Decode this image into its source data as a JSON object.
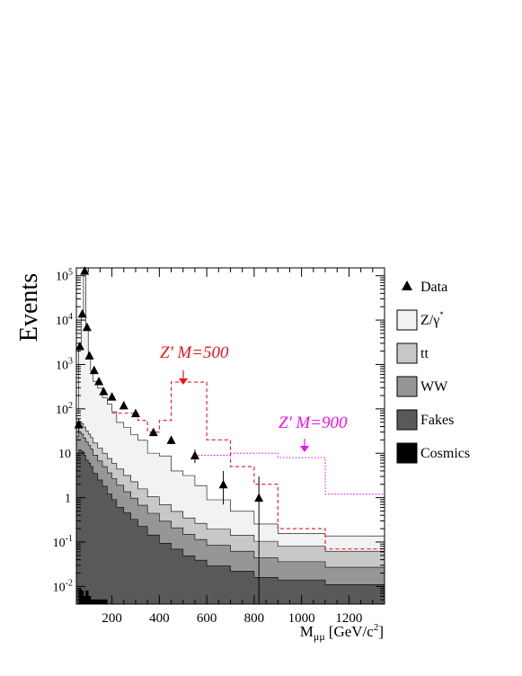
{
  "chart_data": {
    "type": "area",
    "title": "",
    "ylabel": "Events",
    "xlabel": {
      "base": "M",
      "sub": "μμ",
      "units_pre": "[GeV/c",
      "units_sup": "2",
      "units_post": "]"
    },
    "xlim": [
      50,
      1350
    ],
    "ylim": [
      0.004,
      150000
    ],
    "yscale": "log",
    "grid": false,
    "legend_position": "right",
    "x_ticks": [
      200,
      400,
      600,
      800,
      1000,
      1200
    ],
    "y_ticks": [
      {
        "value": 0.01,
        "base": "10",
        "exp": "-2"
      },
      {
        "value": 0.1,
        "base": "10",
        "exp": "-1"
      },
      {
        "value": 1,
        "base": "1",
        "exp": ""
      },
      {
        "value": 10,
        "base": "10",
        "exp": ""
      },
      {
        "value": 100,
        "base": "10",
        "exp": "2"
      },
      {
        "value": 1000,
        "base": "10",
        "exp": "3"
      },
      {
        "value": 10000,
        "base": "10",
        "exp": "4"
      },
      {
        "value": 100000,
        "base": "10",
        "exp": "5"
      }
    ],
    "bin_edges": [
      50,
      60,
      70,
      80,
      90,
      100,
      110,
      120,
      140,
      160,
      180,
      200,
      220,
      250,
      280,
      310,
      350,
      400,
      450,
      500,
      550,
      600,
      700,
      800,
      900,
      1100,
      1350
    ],
    "stack": [
      {
        "name": "Cosmics",
        "color": "#000000",
        "values": [
          0.004,
          0.009,
          0.008,
          0.006,
          0.008,
          0.006,
          0.005,
          0.005,
          0.005,
          0.005,
          0.004,
          0.004,
          0.004,
          0.004,
          0.004,
          0.004,
          0.004,
          0.004,
          0.004,
          0.004,
          0.004,
          0.004,
          0.004,
          0.004,
          0.004,
          0.004
        ]
      },
      {
        "name": "Fakes",
        "color": "#595959",
        "values": [
          10,
          12,
          11,
          9,
          7,
          6,
          5,
          3.5,
          2.5,
          1.8,
          1.2,
          0.9,
          0.6,
          0.45,
          0.32,
          0.22,
          0.14,
          0.09,
          0.065,
          0.045,
          0.035,
          0.025,
          0.018,
          0.012,
          0.01,
          0.007
        ]
      },
      {
        "name": "WW",
        "color": "#969696",
        "values": [
          14,
          18,
          16,
          13,
          11,
          9,
          7.5,
          5.5,
          4.2,
          3.2,
          2.4,
          1.8,
          1.3,
          0.9,
          0.65,
          0.45,
          0.3,
          0.2,
          0.14,
          0.1,
          0.075,
          0.055,
          0.04,
          0.028,
          0.022,
          0.016
        ]
      },
      {
        "name": "tt",
        "color": "#c8c8c8",
        "values": [
          16,
          22,
          20,
          17,
          14,
          12,
          10,
          8,
          6.5,
          5,
          4,
          3.2,
          2.5,
          1.8,
          1.3,
          0.9,
          0.6,
          0.4,
          0.28,
          0.2,
          0.15,
          0.11,
          0.08,
          0.06,
          0.045,
          0.035
        ]
      },
      {
        "name": "Z/γ*",
        "color": "#f2f2f2",
        "values": [
          40,
          2200,
          12000,
          100000,
          6500,
          1600,
          700,
          400,
          280,
          170,
          120,
          80,
          45,
          35,
          24,
          18,
          9,
          8,
          3.5,
          2.8,
          1.6,
          0.7,
          0.35,
          0.15,
          0.075,
          0.075
        ]
      }
    ],
    "signals": [
      {
        "name": "Z' M=500",
        "label": "Z' M=500",
        "color": "#e8141e",
        "dash": "4,3",
        "edges": [
          200,
          310,
          350,
          400,
          450,
          500,
          550,
          600,
          700,
          800,
          900,
          1100,
          1350
        ],
        "values": [
          80,
          55,
          30,
          55,
          400,
          400,
          400,
          20,
          5,
          2,
          0.2,
          0.07
        ],
        "label_pos": [
          178,
          398
        ],
        "arrow_x": 204,
        "arrow_y1": 412,
        "arrow_y2": 428
      },
      {
        "name": "Z' M=900",
        "label": "Z' M=900",
        "color": "#ee11ee",
        "dash": "1.5,2",
        "edges": [
          550,
          600,
          700,
          800,
          900,
          1000,
          1100,
          1350
        ],
        "values": [
          9,
          9,
          10,
          10,
          8,
          8,
          1.2
        ],
        "label_pos": [
          310,
          476
        ],
        "arrow_x": 339,
        "arrow_y1": 488,
        "arrow_y2": 503
      }
    ],
    "data_points": [
      {
        "x": 60,
        "y": 45,
        "err": [
          30,
          60
        ]
      },
      {
        "x": 65,
        "y": 2600,
        "err": [
          2500,
          2700
        ]
      },
      {
        "x": 75,
        "y": 14000,
        "err": [
          13800,
          14200
        ]
      },
      {
        "x": 85,
        "y": 130000,
        "err": [
          129000,
          131000
        ]
      },
      {
        "x": 95,
        "y": 7000,
        "err": [
          6900,
          7100
        ]
      },
      {
        "x": 105,
        "y": 1600,
        "err": [
          1550,
          1650
        ]
      },
      {
        "x": 125,
        "y": 750,
        "err": [
          720,
          780
        ]
      },
      {
        "x": 145,
        "y": 420,
        "err": [
          400,
          440
        ]
      },
      {
        "x": 165,
        "y": 250,
        "err": [
          235,
          265
        ]
      },
      {
        "x": 200,
        "y": 190,
        "err": [
          180,
          200
        ]
      },
      {
        "x": 250,
        "y": 120,
        "err": [
          110,
          130
        ]
      },
      {
        "x": 300,
        "y": 80,
        "err": [
          72,
          88
        ]
      },
      {
        "x": 375,
        "y": 30,
        "err": [
          25,
          35
        ]
      },
      {
        "x": 450,
        "y": 20,
        "err": [
          16,
          24
        ]
      },
      {
        "x": 550,
        "y": 9,
        "err": [
          6,
          12
        ]
      },
      {
        "x": 670,
        "y": 2,
        "err": [
          0.7,
          4
        ]
      },
      {
        "x": 820,
        "y": 1,
        "err": [
          0.004,
          3
        ]
      }
    ],
    "legend": [
      {
        "label": "Data",
        "kind": "marker",
        "sup": ""
      },
      {
        "label": "Z/γ",
        "kind": "box",
        "color": "#f2f2f2",
        "sup": "*"
      },
      {
        "label": "tt",
        "kind": "box",
        "color": "#c8c8c8",
        "sup": ""
      },
      {
        "label": "WW",
        "kind": "box",
        "color": "#969696",
        "sup": ""
      },
      {
        "label": "Fakes",
        "kind": "box",
        "color": "#595959",
        "sup": ""
      },
      {
        "label": "Cosmics",
        "kind": "box",
        "color": "#000000",
        "sup": ""
      }
    ]
  }
}
